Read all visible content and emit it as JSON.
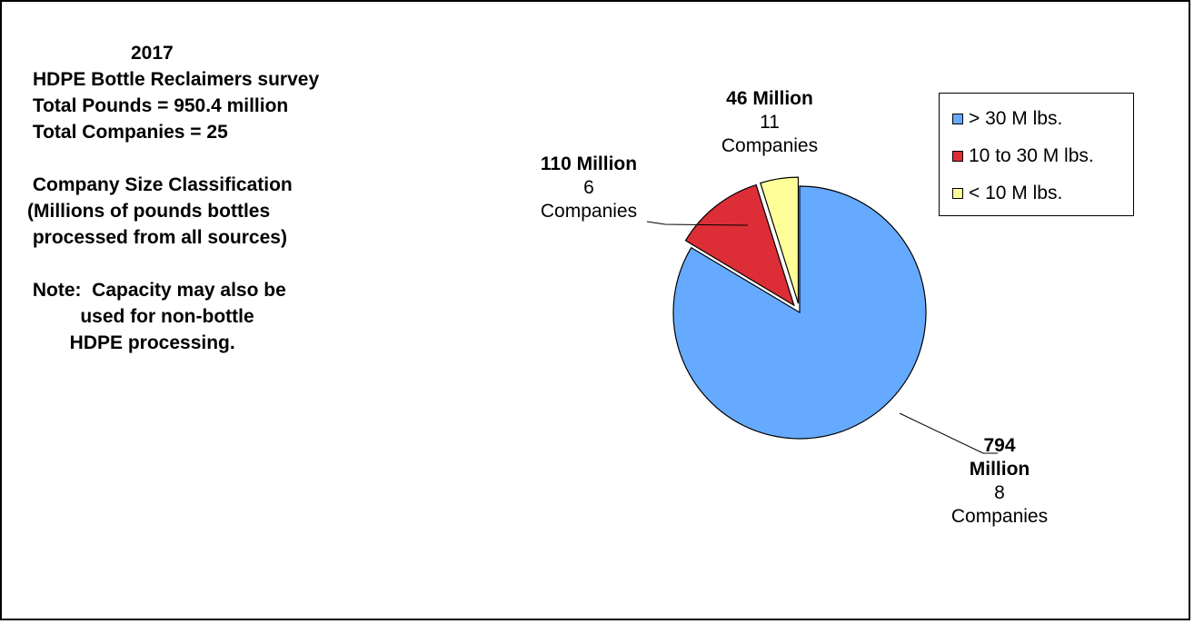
{
  "text_block": {
    "year": "2017",
    "survey": "HDPE Bottle Reclaimers survey",
    "total_pounds": " Total Pounds = 950.4 million",
    "total_companies": " Total Companies = 25",
    "classification_title": " Company Size Classification",
    "classification_1": "(Millions of pounds bottles",
    "classification_2": " processed from all sources)",
    "note_1": " Note:  Capacity may also be",
    "note_2": "          used for non-bottle",
    "note_3": "        HDPE processing."
  },
  "chart_data": {
    "type": "pie",
    "start_angle_deg": 0,
    "slices": [
      {
        "name": "> 30 M lbs.",
        "value": 794,
        "color": "#66AAFF",
        "exploded": false,
        "label_value": "794 Million",
        "label_companies_count": "8",
        "label_companies": "Companies"
      },
      {
        "name": "10 to 30 M lbs.",
        "value": 110,
        "color": "#DD2E37",
        "exploded": true,
        "label_value": "110 Million",
        "label_companies_count": "6",
        "label_companies": "Companies"
      },
      {
        "name": "< 10 M lbs.",
        "value": 46,
        "color": "#FFFF99",
        "exploded": true,
        "label_value": "46 Million",
        "label_companies_count": "11",
        "label_companies": "Companies"
      }
    ],
    "legend": {
      "position": "top-right",
      "items": [
        {
          "label": " > 30 M lbs.",
          "color": "#66AAFF"
        },
        {
          "label": "10 to 30 M lbs.",
          "color": "#DD2E37"
        },
        {
          "label": "< 10 M lbs.",
          "color": "#FFFF99"
        }
      ]
    }
  }
}
